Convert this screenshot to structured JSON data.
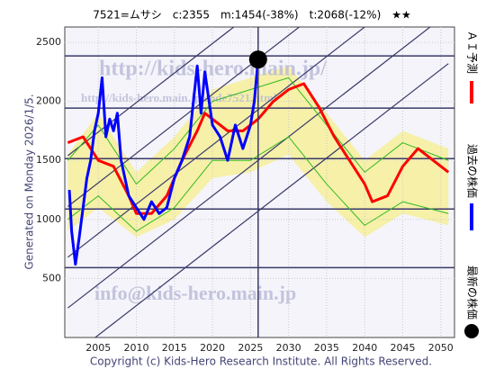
{
  "chart_data": {
    "type": "line",
    "title": "7521=ムサシ　c:2355　m:1454(-38%)　t:2068(-12%)　★★",
    "side_label": "Generated on Monday 2026/1/5.",
    "footer": "Copyright (c) Kids-Hero Research Institute. All Rights Reserved.",
    "watermarks": [
      "http://kids-hero.main.jp/",
      "http://kids-hero.main.jp/code7521.html",
      "info@kids-hero.main.jp"
    ],
    "xlim": [
      2000.6,
      2051.8
    ],
    "ylim": [
      0,
      2630
    ],
    "xticks": [
      2005,
      2010,
      2015,
      2020,
      2025,
      2030,
      2035,
      2040,
      2045,
      2050
    ],
    "yticks": [
      500,
      1000,
      1500,
      2000,
      2500
    ],
    "grid": true,
    "hlines": [
      2385,
      1943,
      1515,
      1088,
      592
    ],
    "vline": 2026,
    "trend_lines": [
      {
        "x": [
          2001,
          2051
        ],
        "values": [
          1540,
          4040
        ]
      },
      {
        "x": [
          2001,
          2051
        ],
        "values": [
          1110,
          3610
        ]
      },
      {
        "x": [
          2001,
          2051
        ],
        "values": [
          680,
          3180
        ]
      },
      {
        "x": [
          2001,
          2051
        ],
        "values": [
          250,
          2750
        ]
      },
      {
        "x": [
          2001,
          2051
        ],
        "values": [
          -180,
          2320
        ]
      }
    ],
    "band": {
      "color": "#f6f0a8",
      "x": [
        2001,
        2005,
        2010,
        2015,
        2020,
        2025,
        2030,
        2035,
        2040,
        2045,
        2051
      ],
      "low": [
        900,
        1100,
        850,
        1000,
        1350,
        1400,
        1550,
        1150,
        850,
        1050,
        950
      ],
      "high": [
        1550,
        1900,
        1400,
        1700,
        2100,
        2200,
        2300,
        1900,
        1500,
        1750,
        1600
      ]
    },
    "series": [
      {
        "name": "ＡＩ予測",
        "color": "#ff0000",
        "x": [
          2001,
          2003,
          2005,
          2007,
          2009,
          2010,
          2012,
          2014,
          2016,
          2018,
          2019,
          2020,
          2022,
          2024,
          2026,
          2028,
          2030,
          2032,
          2034,
          2036,
          2038,
          2040,
          2041,
          2043,
          2045,
          2047,
          2049,
          2051
        ],
        "values": [
          1650,
          1700,
          1500,
          1450,
          1200,
          1050,
          1050,
          1200,
          1500,
          1750,
          1900,
          1850,
          1750,
          1750,
          1850,
          2000,
          2100,
          2150,
          1950,
          1700,
          1500,
          1300,
          1150,
          1200,
          1450,
          1600,
          1500,
          1400
        ]
      },
      {
        "name": "過去の株価",
        "color": "#0000ff",
        "x": [
          2001.2,
          2001.5,
          2002,
          2002.5,
          2003,
          2003.5,
          2004,
          2004.5,
          2005,
          2005.5,
          2006,
          2006.5,
          2007,
          2007.5,
          2008,
          2009,
          2010,
          2011,
          2012,
          2013,
          2014,
          2015,
          2016,
          2017,
          2018,
          2018.5,
          2019,
          2020,
          2021,
          2022,
          2023,
          2024,
          2025,
          2025.5,
          2026
        ],
        "values": [
          1250,
          900,
          620,
          850,
          1100,
          1350,
          1500,
          1750,
          1900,
          2200,
          1700,
          1850,
          1750,
          1900,
          1500,
          1200,
          1100,
          1000,
          1150,
          1050,
          1100,
          1350,
          1500,
          1700,
          2300,
          1900,
          2250,
          1800,
          1700,
          1500,
          1800,
          1600,
          1800,
          2000,
          2355
        ]
      },
      {
        "color": "#33bb22",
        "x": [
          2001,
          2005,
          2010,
          2015,
          2020,
          2025,
          2030,
          2035,
          2040,
          2045,
          2051
        ],
        "values": [
          1500,
          1800,
          1300,
          1600,
          2000,
          2100,
          2200,
          1800,
          1400,
          1650,
          1500
        ]
      },
      {
        "color": "#33bb22",
        "x": [
          2001,
          2005,
          2010,
          2015,
          2020,
          2025,
          2030,
          2035,
          2040,
          2045,
          2051
        ],
        "values": [
          1000,
          1200,
          900,
          1100,
          1500,
          1500,
          1700,
          1300,
          950,
          1150,
          1050
        ]
      }
    ],
    "latest": {
      "name": "最新の株価",
      "x": 2026,
      "value": 2355,
      "color": "#000000"
    }
  }
}
